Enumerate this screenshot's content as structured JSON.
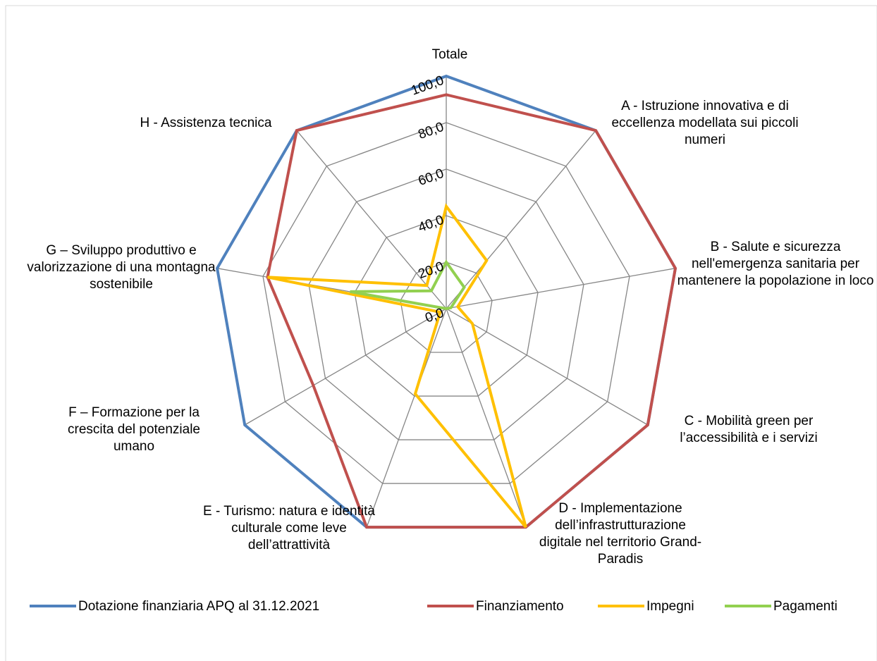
{
  "chart_data": {
    "type": "radar",
    "categories": [
      "Totale",
      "A - Istruzione innovativa e di eccellenza modellata sui piccoli numeri",
      "B - Salute e sicurezza nell'emergenza sanitaria per mantenere la popolazione in loco",
      "C - Mobilità green per l’accessibilità e i servizi",
      "D - Implementazione dell’infrastrutturazione digitale nel territorio Grand-Paradis",
      "E - Turismo: natura e identità culturale come leve dell’attrattività",
      "F – Formazione per la crescita del potenziale umano",
      "G – Sviluppo produttivo e valorizzazione di una montagna sostenibile",
      "H - Assistenza tecnica"
    ],
    "series": [
      {
        "name": "Dotazione finanziaria APQ al 31.12.2021",
        "color": "#4f81bd",
        "values": [
          100,
          100,
          100,
          100,
          100,
          100,
          100,
          100,
          100
        ]
      },
      {
        "name": "Finanziamento",
        "color": "#c0504d",
        "values": [
          92,
          100,
          100,
          100,
          100,
          100,
          66,
          78,
          100
        ]
      },
      {
        "name": "Impegni",
        "color": "#ffc000",
        "values": [
          44,
          27,
          5,
          13,
          100,
          39,
          3,
          78,
          13
        ]
      },
      {
        "name": "Pagamenti",
        "color": "#92d050",
        "values": [
          20,
          12,
          2,
          0,
          0,
          0,
          0,
          42,
          10
        ]
      }
    ],
    "ylim": [
      0,
      100
    ],
    "yticks": [
      {
        "value": 0,
        "label": "0,0"
      },
      {
        "value": 20,
        "label": "20,0"
      },
      {
        "value": 40,
        "label": "40,0"
      },
      {
        "value": 60,
        "label": "60,0"
      },
      {
        "value": 80,
        "label": "80,0"
      },
      {
        "value": 100,
        "label": "100,0"
      }
    ],
    "legend": "bottom",
    "grid": true
  }
}
